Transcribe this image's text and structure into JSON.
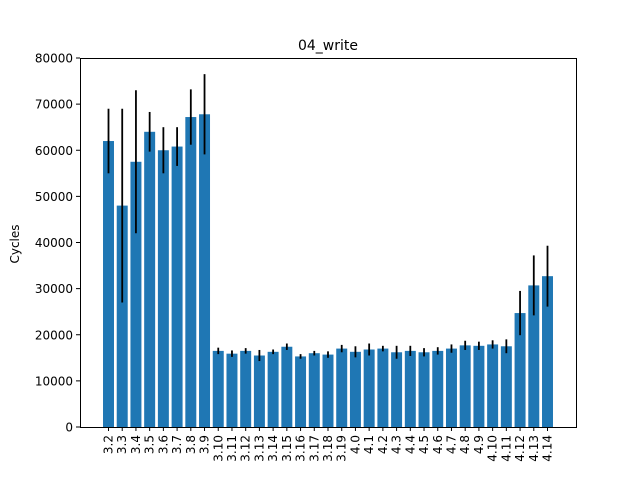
{
  "chart_data": {
    "type": "bar",
    "title": "04_write",
    "xlabel": "",
    "ylabel": "Cycles",
    "ylim": [
      0,
      80000
    ],
    "yticks": [
      0,
      10000,
      20000,
      30000,
      40000,
      50000,
      60000,
      70000,
      80000
    ],
    "grid": false,
    "bar_color": "#1f77b4",
    "error_color": "#000000",
    "categories": [
      "3.2",
      "3.3",
      "3.4",
      "3.5",
      "3.6",
      "3.7",
      "3.8",
      "3.9",
      "3.10",
      "3.11",
      "3.12",
      "3.13",
      "3.14",
      "3.15",
      "3.16",
      "3.17",
      "3.18",
      "3.19",
      "4.0",
      "4.1",
      "4.2",
      "4.3",
      "4.4",
      "4.5",
      "4.6",
      "4.7",
      "4.8",
      "4.9",
      "4.10",
      "4.11",
      "4.12",
      "4.13",
      "4.14"
    ],
    "values": [
      62000,
      48000,
      57500,
      64000,
      60000,
      60800,
      67200,
      67800,
      16500,
      15900,
      16500,
      15500,
      16300,
      17400,
      15300,
      16000,
      15700,
      17000,
      16300,
      16800,
      17000,
      16200,
      16500,
      16200,
      16500,
      17000,
      17700,
      17600,
      17900,
      17500,
      24700,
      30700,
      32700
    ],
    "errors": [
      7000,
      21000,
      15500,
      4300,
      5000,
      4200,
      6000,
      8700,
      700,
      700,
      600,
      1200,
      500,
      700,
      500,
      500,
      700,
      800,
      1200,
      1300,
      600,
      1400,
      1100,
      900,
      800,
      900,
      1000,
      900,
      900,
      1500,
      4800,
      6500,
      6600
    ]
  }
}
